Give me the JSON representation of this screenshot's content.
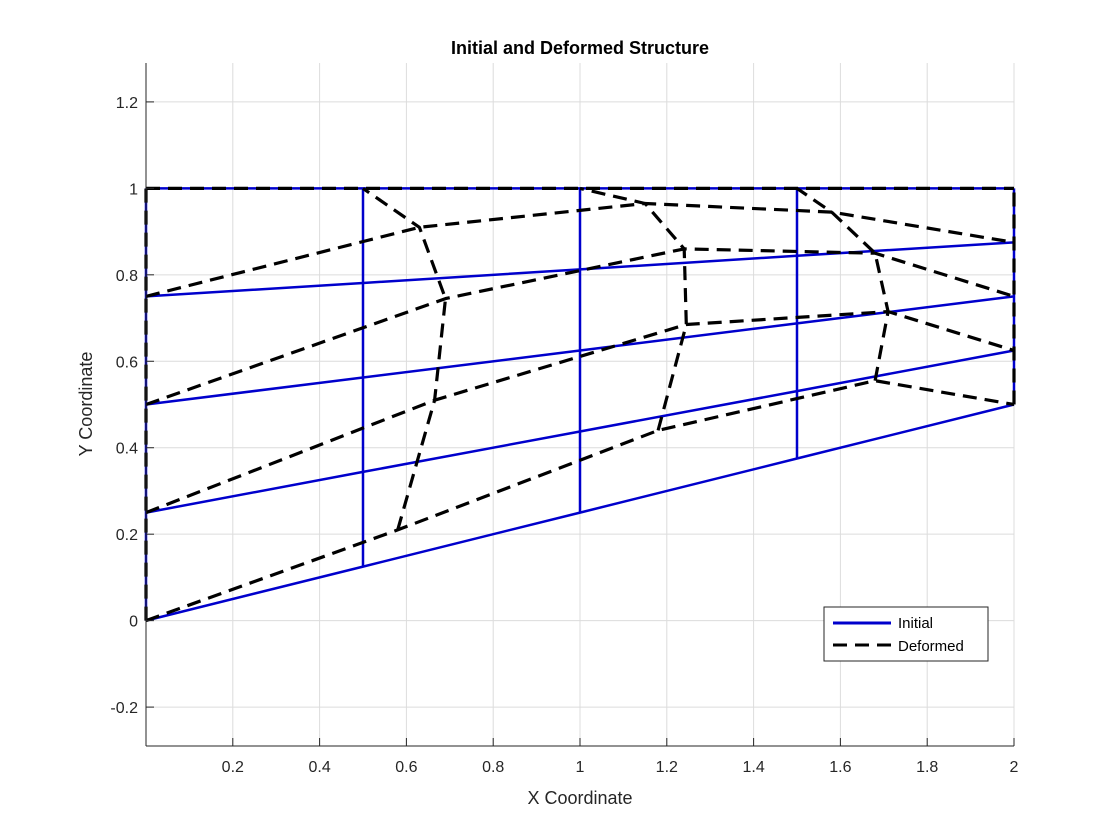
{
  "chart_data": {
    "type": "line",
    "title": "Initial and Deformed Structure",
    "xlabel": "X Coordinate",
    "ylabel": "Y Coordinate",
    "xlim": [
      0,
      2
    ],
    "ylim": [
      -0.29,
      1.29
    ],
    "xticks": [
      0.2,
      0.4,
      0.6,
      0.8,
      1,
      1.2,
      1.4,
      1.6,
      1.8,
      2
    ],
    "xtick_labels": [
      "0.2",
      "0.4",
      "0.6",
      "0.8",
      "1",
      "1.2",
      "1.4",
      "1.6",
      "1.8",
      "2"
    ],
    "yticks": [
      -0.2,
      0,
      0.2,
      0.4,
      0.6,
      0.8,
      1,
      1.2
    ],
    "ytick_labels": [
      "-0.2",
      "0",
      "0.2",
      "0.4",
      "0.6",
      "0.8",
      "1",
      "1.2"
    ],
    "grid": true,
    "legend_placement": "lower-right",
    "colors": {
      "initial": "#0000cc",
      "deformed": "#000000",
      "grid": "#dcdcdc",
      "axes": "#262626"
    },
    "series": [
      {
        "name": "Initial",
        "style": "solid",
        "lines": [
          [
            [
              0,
              0
            ],
            [
              0.5,
              0.125
            ],
            [
              1,
              0.25
            ],
            [
              1.5,
              0.375
            ],
            [
              2,
              0.5
            ]
          ],
          [
            [
              0,
              0.25
            ],
            [
              0.5,
              0.344
            ],
            [
              1,
              0.4375
            ],
            [
              1.5,
              0.531
            ],
            [
              2,
              0.625
            ]
          ],
          [
            [
              0,
              0.5
            ],
            [
              0.5,
              0.5625
            ],
            [
              1,
              0.625
            ],
            [
              1.5,
              0.6875
            ],
            [
              2,
              0.75
            ]
          ],
          [
            [
              0,
              0.75
            ],
            [
              0.5,
              0.781
            ],
            [
              1,
              0.8125
            ],
            [
              1.5,
              0.844
            ],
            [
              2,
              0.875
            ]
          ],
          [
            [
              0,
              1
            ],
            [
              0.5,
              1
            ],
            [
              1,
              1
            ],
            [
              1.5,
              1
            ],
            [
              2,
              1
            ]
          ],
          [
            [
              0,
              0
            ],
            [
              0,
              0.25
            ],
            [
              0,
              0.5
            ],
            [
              0,
              0.75
            ],
            [
              0,
              1
            ]
          ],
          [
            [
              0.5,
              0.125
            ],
            [
              0.5,
              0.344
            ],
            [
              0.5,
              0.5625
            ],
            [
              0.5,
              0.781
            ],
            [
              0.5,
              1
            ]
          ],
          [
            [
              1,
              0.25
            ],
            [
              1,
              0.4375
            ],
            [
              1,
              0.625
            ],
            [
              1,
              0.8125
            ],
            [
              1,
              1
            ]
          ],
          [
            [
              1.5,
              0.375
            ],
            [
              1.5,
              0.531
            ],
            [
              1.5,
              0.6875
            ],
            [
              1.5,
              0.844
            ],
            [
              1.5,
              1
            ]
          ],
          [
            [
              2,
              0.5
            ],
            [
              2,
              0.625
            ],
            [
              2,
              0.75
            ],
            [
              2,
              0.875
            ],
            [
              2,
              1
            ]
          ]
        ]
      },
      {
        "name": "Deformed",
        "style": "dashed",
        "lines": [
          [
            [
              0,
              0
            ],
            [
              0.58,
              0.21
            ],
            [
              1.18,
              0.44
            ],
            [
              1.68,
              0.555
            ],
            [
              2,
              0.5
            ]
          ],
          [
            [
              0,
              0.25
            ],
            [
              0.665,
              0.51
            ],
            [
              1.245,
              0.685
            ],
            [
              1.71,
              0.715
            ],
            [
              2,
              0.625
            ]
          ],
          [
            [
              0,
              0.5
            ],
            [
              0.69,
              0.745
            ],
            [
              1.24,
              0.86
            ],
            [
              1.68,
              0.85
            ],
            [
              2,
              0.75
            ]
          ],
          [
            [
              0,
              0.75
            ],
            [
              0.63,
              0.91
            ],
            [
              1.15,
              0.965
            ],
            [
              1.58,
              0.945
            ],
            [
              2,
              0.875
            ]
          ],
          [
            [
              0,
              1
            ],
            [
              0.5,
              1
            ],
            [
              1,
              1
            ],
            [
              1.5,
              1
            ],
            [
              2,
              1
            ]
          ],
          [
            [
              0,
              0
            ],
            [
              0,
              0.25
            ],
            [
              0,
              0.5
            ],
            [
              0,
              0.75
            ],
            [
              0,
              1
            ]
          ],
          [
            [
              0.58,
              0.21
            ],
            [
              0.665,
              0.51
            ],
            [
              0.69,
              0.745
            ],
            [
              0.63,
              0.91
            ],
            [
              0.5,
              1
            ]
          ],
          [
            [
              1.18,
              0.44
            ],
            [
              1.245,
              0.685
            ],
            [
              1.24,
              0.86
            ],
            [
              1.15,
              0.965
            ],
            [
              1,
              1
            ]
          ],
          [
            [
              1.68,
              0.555
            ],
            [
              1.71,
              0.715
            ],
            [
              1.68,
              0.85
            ],
            [
              1.58,
              0.945
            ],
            [
              1.5,
              1
            ]
          ],
          [
            [
              2,
              0.5
            ],
            [
              2,
              0.625
            ],
            [
              2,
              0.75
            ],
            [
              2,
              0.875
            ],
            [
              2,
              1
            ]
          ]
        ]
      }
    ]
  }
}
